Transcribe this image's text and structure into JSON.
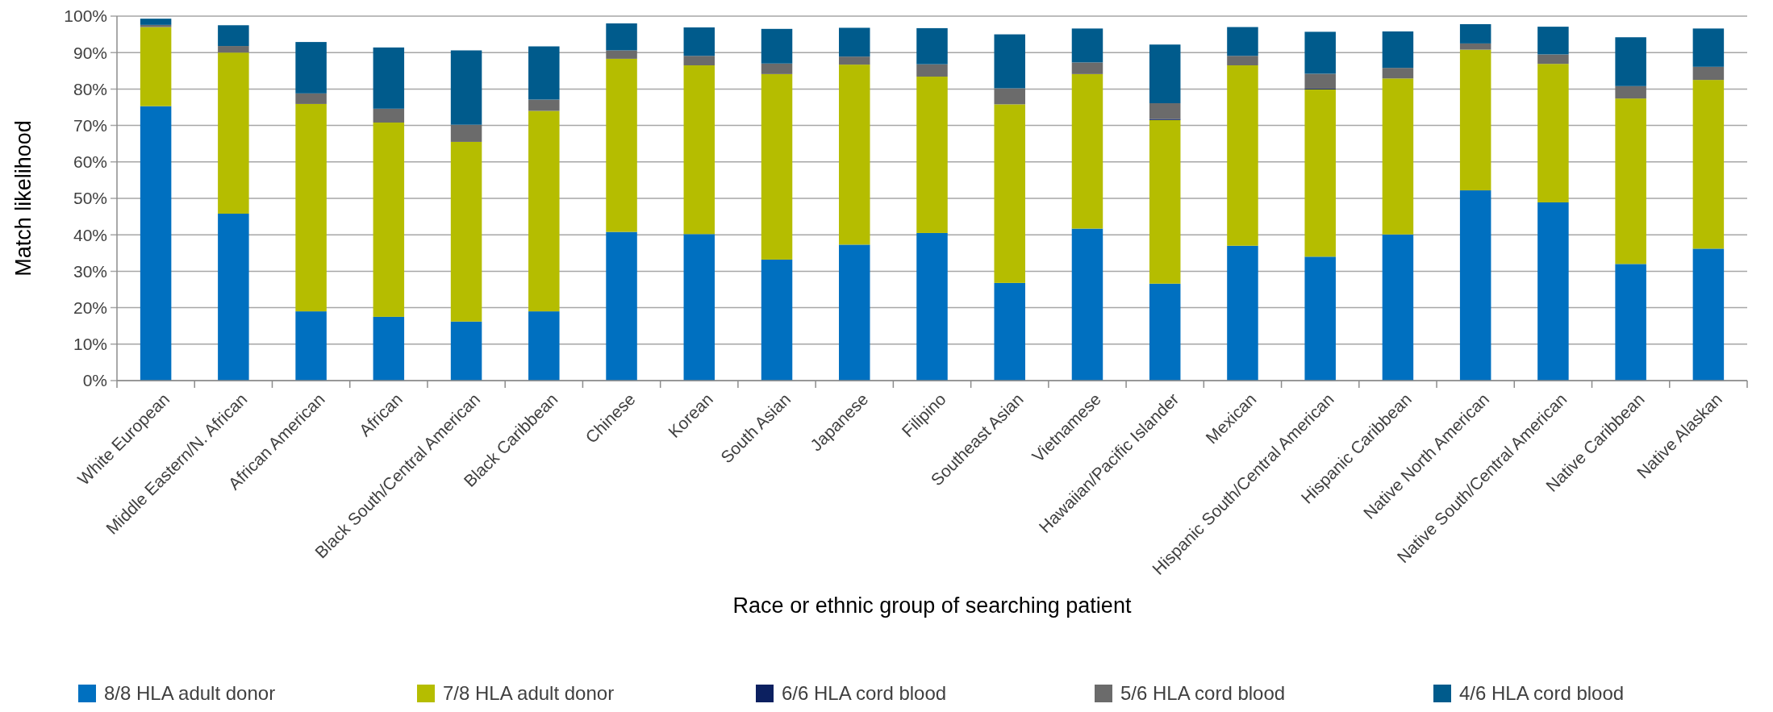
{
  "chart_data": {
    "type": "bar",
    "stacked": true,
    "xlabel": "Race or ethnic group of searching patient",
    "ylabel": "Match likelihood",
    "categories": [
      "White European",
      "Middle Eastern/N. African",
      "African American",
      "African",
      "Black South/Central American",
      "Black Caribbean",
      "Chinese",
      "Korean",
      "South Asian",
      "Japanese",
      "Filipino",
      "Southeast Asian",
      "Vietnamese",
      "Hawaiian/Pacific Islander",
      "Mexican",
      "Hispanic South/Central American",
      "Hispanic Caribbean",
      "Native North American",
      "Native South/Central American",
      "Native Caribbean",
      "Native Alaskan"
    ],
    "series": [
      {
        "name": "8/8 HLA adult donor",
        "color": "#0070c0",
        "values": [
          75.3,
          45.8,
          19.0,
          17.5,
          16.2,
          19.0,
          40.8,
          40.2,
          33.2,
          37.3,
          40.5,
          26.8,
          41.7,
          26.6,
          37.0,
          34.0,
          40.1,
          52.2,
          48.9,
          32.0,
          36.2
        ]
      },
      {
        "name": "7/8 HLA adult donor",
        "color": "#b5bd00",
        "values": [
          21.7,
          44.2,
          56.9,
          53.3,
          49.3,
          55.0,
          47.5,
          46.3,
          50.9,
          49.4,
          42.9,
          49.0,
          42.4,
          44.9,
          49.5,
          45.9,
          42.8,
          38.6,
          38.0,
          45.4,
          46.3
        ]
      },
      {
        "name": "6/6 HLA cord blood",
        "color": "#0c2060",
        "values": [
          0,
          0,
          0,
          0,
          0,
          0,
          0,
          0,
          0,
          0,
          0,
          0,
          0,
          0.3,
          0,
          0.2,
          0,
          0,
          0,
          0,
          0
        ]
      },
      {
        "name": "5/6 HLA cord blood",
        "color": "#6b6b6b",
        "values": [
          0.6,
          1.8,
          2.9,
          3.8,
          4.7,
          3.1,
          2.3,
          2.6,
          2.9,
          2.2,
          3.4,
          4.4,
          3.2,
          4.3,
          2.6,
          4.1,
          2.9,
          1.7,
          2.6,
          3.4,
          3.6
        ]
      },
      {
        "name": "4/6 HLA cord blood",
        "color": "#005b8c",
        "values": [
          1.7,
          5.7,
          14.1,
          16.8,
          20.4,
          14.6,
          7.4,
          7.8,
          9.5,
          7.9,
          9.9,
          14.8,
          9.3,
          16.1,
          7.9,
          11.5,
          10.0,
          5.3,
          7.6,
          13.4,
          10.5
        ]
      }
    ],
    "ylim": [
      0,
      100
    ],
    "yticks": [
      {
        "value": 0,
        "label": "0%"
      },
      {
        "value": 10,
        "label": "10%"
      },
      {
        "value": 20,
        "label": "20%"
      },
      {
        "value": 30,
        "label": "30%"
      },
      {
        "value": 40,
        "label": "40%"
      },
      {
        "value": 50,
        "label": "50%"
      },
      {
        "value": 60,
        "label": "60%"
      },
      {
        "value": 70,
        "label": "70%"
      },
      {
        "value": 80,
        "label": "80%"
      },
      {
        "value": 90,
        "label": "90%"
      },
      {
        "value": 100,
        "label": "100%"
      }
    ],
    "grid": "y",
    "legend": "bottom"
  }
}
